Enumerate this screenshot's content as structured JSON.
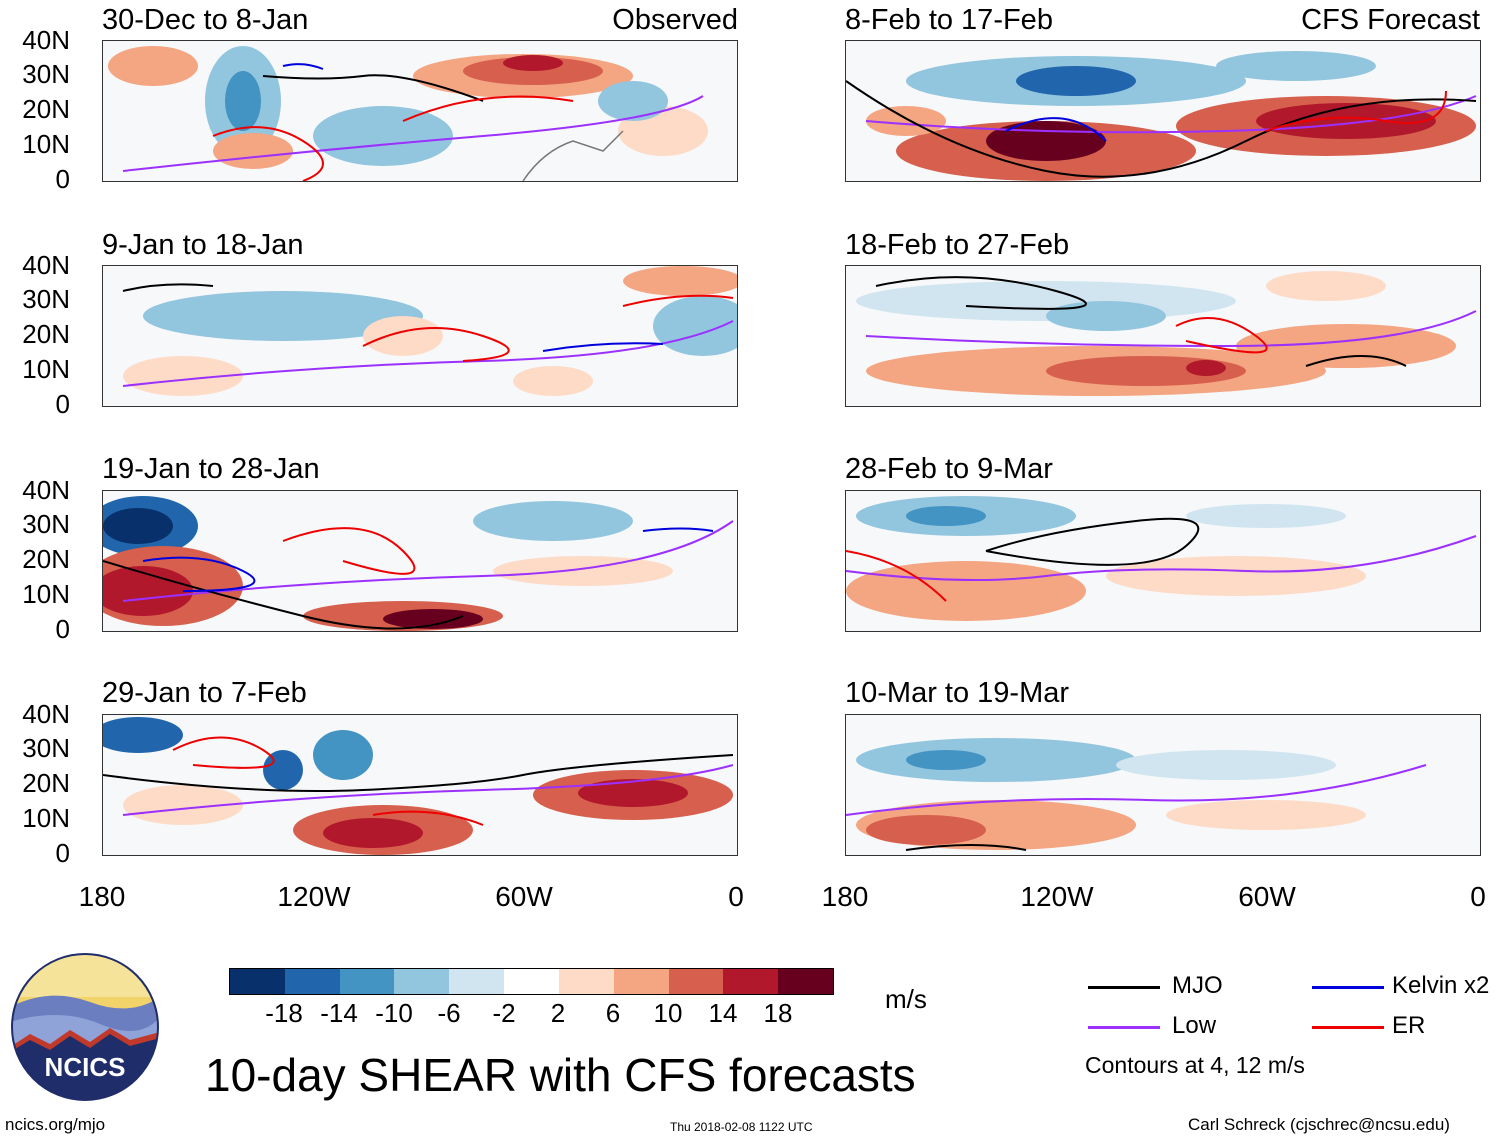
{
  "panels": [
    {
      "title": "30-Dec to 8-Jan",
      "tag": "Observed",
      "column": "observed"
    },
    {
      "title": "9-Jan to 18-Jan",
      "tag": "",
      "column": "observed"
    },
    {
      "title": "19-Jan to 28-Jan",
      "tag": "",
      "column": "observed"
    },
    {
      "title": "29-Jan to 7-Feb",
      "tag": "",
      "column": "observed"
    },
    {
      "title": "8-Feb to 17-Feb",
      "tag": "CFS Forecast",
      "column": "forecast"
    },
    {
      "title": "18-Feb to 27-Feb",
      "tag": "",
      "column": "forecast"
    },
    {
      "title": "28-Feb to 9-Mar",
      "tag": "",
      "column": "forecast"
    },
    {
      "title": "10-Mar to 19-Mar",
      "tag": "",
      "column": "forecast"
    }
  ],
  "y_axis_labels": [
    "40N",
    "30N",
    "20N",
    "10N",
    "0"
  ],
  "x_axis_labels": [
    "180",
    "120W",
    "60W",
    "0"
  ],
  "colorbar": {
    "labels": [
      "-18",
      "-14",
      "-10",
      "-6",
      "-2",
      "2",
      "6",
      "10",
      "14",
      "18"
    ],
    "colors": [
      "#08306b",
      "#2166ac",
      "#4393c3",
      "#92c5de",
      "#d1e5f0",
      "#ffffff",
      "#fddbc7",
      "#f4a582",
      "#d6604d",
      "#b2182b",
      "#67001f"
    ],
    "units": "m/s"
  },
  "legend": {
    "items": [
      {
        "label": "MJO",
        "color": "#000000"
      },
      {
        "label": "Kelvin x2",
        "color": "#0000dd"
      },
      {
        "label": "Low",
        "color": "#9b30ff"
      },
      {
        "label": "ER",
        "color": "#ee0000"
      }
    ],
    "note": "Contours at 4, 12 m/s"
  },
  "main_title": "10-day SHEAR with CFS forecasts",
  "logo_text": "NCICS",
  "footer": {
    "url": "ncics.org/mjo",
    "timestamp": "Thu 2018-02-08 1122 UTC",
    "credit": "Carl Schreck (cjschrec@ncsu.edu)"
  }
}
